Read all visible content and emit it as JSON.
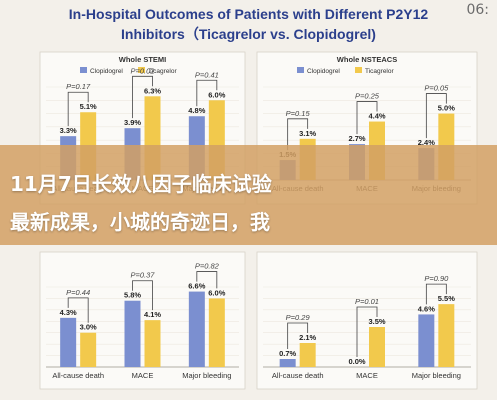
{
  "header": {
    "title_line1": "In-Hospital Outcomes of Patients with Different P2Y12",
    "title_line2": "Inhibitors（Ticagrelor vs. Clopidogrel)",
    "corner_text": "06:"
  },
  "overlay": {
    "line1": "11月7日长效八因子临床试验",
    "line2": "最新成果，小城的奇迹日，我"
  },
  "colors": {
    "clopidogrel": "#7b8fd0",
    "ticagrelor": "#f2c94c"
  },
  "chart_data": [
    {
      "type": "bar",
      "title": "Whole STEMI",
      "categories": [
        "All-cause death",
        "MACE",
        "Major bleeding"
      ],
      "series": [
        {
          "name": "Clopidogrel",
          "values": [
            3.3,
            3.9,
            4.8
          ]
        },
        {
          "name": "Ticagrelor",
          "values": [
            5.1,
            6.3,
            6.0
          ]
        }
      ],
      "value_labels": [
        [
          "3.3%",
          "3.9%",
          "4.8%"
        ],
        [
          "5.1%",
          "6.3%",
          "6.0%"
        ]
      ],
      "p_values": [
        "P=0.17",
        "P=0.02",
        "P=0.41"
      ],
      "ylim": [
        0,
        7
      ]
    },
    {
      "type": "bar",
      "title": "Whole NSTEACS",
      "categories": [
        "All-cause death",
        "MACE",
        "Major bleeding"
      ],
      "series": [
        {
          "name": "Clopidogrel",
          "values": [
            1.5,
            2.7,
            2.4
          ]
        },
        {
          "name": "Ticagrelor",
          "values": [
            3.1,
            4.4,
            5.0
          ]
        }
      ],
      "value_labels": [
        [
          "1.5%",
          "2.7%",
          "2.4%"
        ],
        [
          "3.1%",
          "4.4%",
          "5.0%"
        ]
      ],
      "p_values": [
        "P=0.15",
        "P=0.25",
        "P=0.05"
      ],
      "ylim": [
        0,
        7
      ]
    },
    {
      "type": "bar",
      "title": "",
      "categories": [
        "All-cause death",
        "MACE",
        "Major bleeding"
      ],
      "series": [
        {
          "name": "Clopidogrel",
          "values": [
            4.3,
            5.8,
            6.6
          ]
        },
        {
          "name": "Ticagrelor",
          "values": [
            3.0,
            4.1,
            6.0
          ]
        }
      ],
      "value_labels": [
        [
          "4.3%",
          "5.8%",
          "6.6%"
        ],
        [
          "3.0%",
          "4.1%",
          "6.0%"
        ]
      ],
      "p_values": [
        "P=0.44",
        "P=0.37",
        "P=0.82"
      ],
      "ylim": [
        0,
        7
      ]
    },
    {
      "type": "bar",
      "title": "",
      "categories": [
        "All-cause death",
        "MACE",
        "Major bleeding"
      ],
      "series": [
        {
          "name": "Clopidogrel",
          "values": [
            0.7,
            0.0,
            4.6
          ]
        },
        {
          "name": "Ticagrelor",
          "values": [
            2.1,
            3.5,
            5.5
          ]
        }
      ],
      "value_labels": [
        [
          "0.7%",
          "0.0%",
          "4.6%"
        ],
        [
          "2.1%",
          "3.5%",
          "5.5%"
        ]
      ],
      "p_values": [
        "P=0.29",
        "P=0.01",
        "P=0.90"
      ],
      "ylim": [
        0,
        7
      ]
    }
  ]
}
